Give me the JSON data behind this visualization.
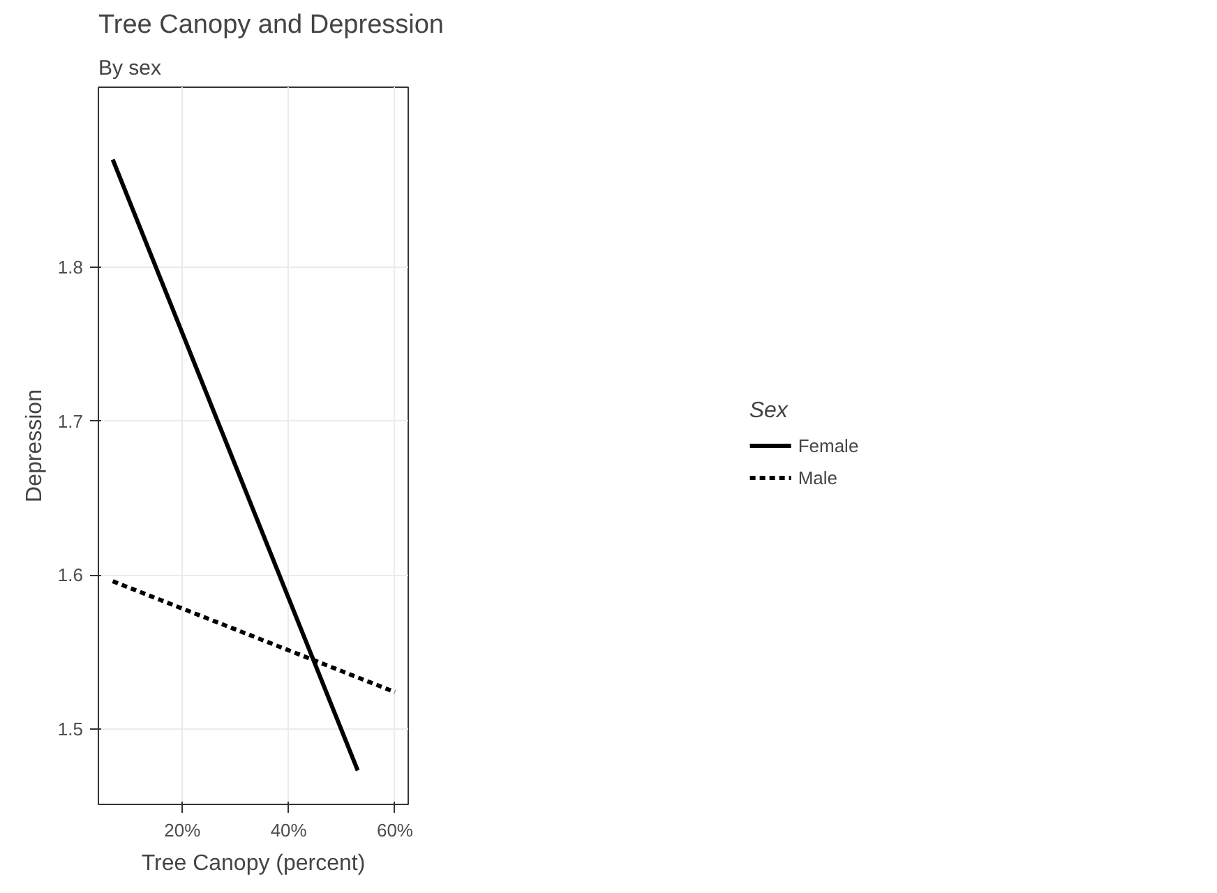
{
  "chart_data": {
    "type": "line",
    "title": "Tree Canopy and Depression",
    "subtitle": "By sex",
    "xlabel": "Tree Canopy (percent)",
    "ylabel": "Depression",
    "legend_title": "Sex",
    "series": [
      {
        "name": "Female",
        "color": "#000000",
        "x": [
          6.9,
          53.0
        ],
        "values": [
          1.87,
          1.473
        ],
        "line_style": "solid"
      },
      {
        "name": "Male",
        "color": "#000000",
        "x": [
          6.9,
          60.0
        ],
        "values": [
          1.596,
          1.524
        ],
        "line_style": "dashed"
      }
    ],
    "xlim": [
      4.2,
      62.5
    ],
    "ylim": [
      1.451,
      1.917
    ],
    "xticks": [
      {
        "value": 20,
        "label": "20%"
      },
      {
        "value": 40,
        "label": "40%"
      },
      {
        "value": 60,
        "label": "60%"
      }
    ],
    "yticks": [
      1.5,
      1.6,
      1.7,
      1.8
    ],
    "grid": true,
    "legend": "right",
    "marker": "none"
  }
}
